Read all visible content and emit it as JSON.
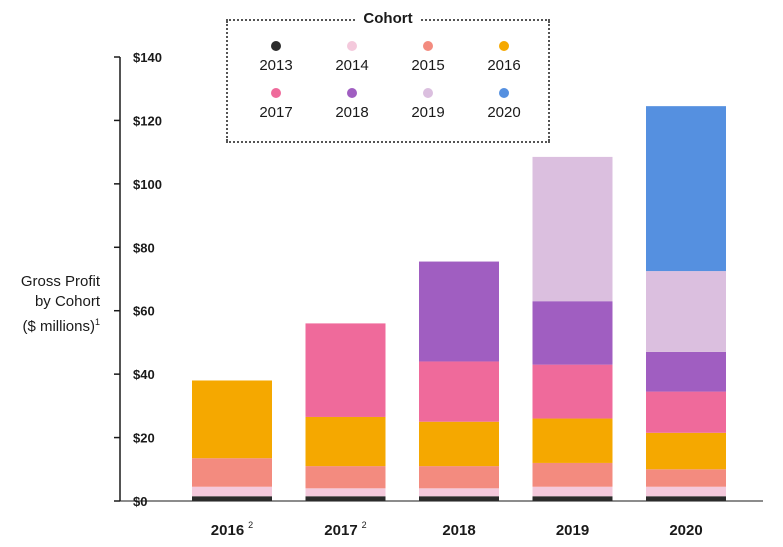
{
  "chart_data": {
    "type": "bar",
    "stacked": true,
    "title": "",
    "xlabel": "",
    "ylabel": {
      "line1": "Gross Profit",
      "line2": "by Cohort",
      "line3": "($ millions)",
      "footnote": "1"
    },
    "ylim": [
      0,
      140
    ],
    "y_ticks": [
      0,
      20,
      40,
      60,
      80,
      100,
      120,
      140
    ],
    "y_tick_labels": [
      "$0",
      "$20",
      "$40",
      "$60",
      "$80",
      "$100",
      "$120",
      "$140"
    ],
    "categories": [
      "2016",
      "2017",
      "2018",
      "2019",
      "2020"
    ],
    "category_footnotes": [
      "2",
      "2",
      "",
      "",
      ""
    ],
    "legend_title": "Cohort",
    "legend_placement": "top-center",
    "series": [
      {
        "name": "2013",
        "color": "#2b2b2b",
        "values": [
          1.5,
          1.5,
          1.5,
          1.5,
          1.5
        ]
      },
      {
        "name": "2014",
        "color": "#f4c9dc",
        "values": [
          3,
          2.5,
          2.5,
          3,
          3
        ]
      },
      {
        "name": "2015",
        "color": "#f38b7f",
        "values": [
          9,
          7,
          7,
          7.5,
          5.5
        ]
      },
      {
        "name": "2016",
        "color": "#f5a800",
        "values": [
          24.5,
          15.5,
          14,
          14,
          11.5
        ]
      },
      {
        "name": "2017",
        "color": "#ef6a9b",
        "values": [
          0,
          29.5,
          19,
          17,
          13
        ]
      },
      {
        "name": "2018",
        "color": "#a05ec1",
        "values": [
          0,
          0,
          31.5,
          20,
          12.5
        ]
      },
      {
        "name": "2019",
        "color": "#dbbfdf",
        "values": [
          0,
          0,
          0,
          45.5,
          25.5
        ]
      },
      {
        "name": "2020",
        "color": "#5590e0",
        "values": [
          0,
          0,
          0,
          0,
          52
        ]
      }
    ]
  }
}
